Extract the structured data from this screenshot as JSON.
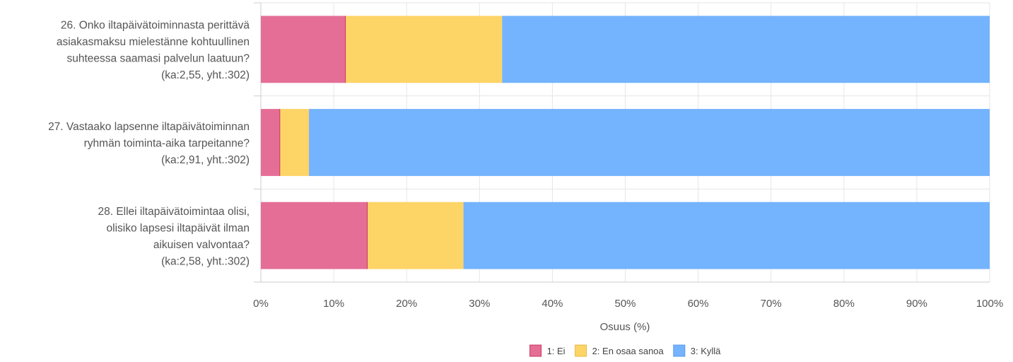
{
  "chart_data": {
    "type": "bar",
    "orientation": "horizontal",
    "stacked": true,
    "categories": [
      [
        "26. Onko iltapäivätoiminnasta perittävä",
        "asiakasmaksu mielestänne kohtuullinen",
        "suhteessa saamasi palvelun laatuun?",
        "(ka:2,55, yht.:302)"
      ],
      [
        "27. Vastaako lapsenne iltapäivätoiminnan",
        "ryhmän toiminta-aika tarpeitanne?",
        "(ka:2,91, yht.:302)"
      ],
      [
        "28. Ellei iltapäivätoimintaa olisi,",
        "olisiko lapsesi iltapäivät ilman",
        "aikuisen valvontaa?",
        "(ka:2,58, yht.:302)"
      ]
    ],
    "series": [
      {
        "name": "1: Ei",
        "color": "#e56e97",
        "values": [
          11.6,
          2.6,
          14.6
        ]
      },
      {
        "name": "2: En osaa sanoa",
        "color": "#fdd466",
        "values": [
          21.5,
          4.0,
          13.2
        ]
      },
      {
        "name": "3: Kyllä",
        "color": "#74b3fd",
        "values": [
          66.9,
          93.4,
          72.2
        ]
      }
    ],
    "xlabel": "Osuus (%)",
    "xlim": [
      0,
      100
    ],
    "xticks": [
      "0%",
      "10%",
      "20%",
      "30%",
      "40%",
      "50%",
      "60%",
      "70%",
      "80%",
      "90%",
      "100%"
    ],
    "grid": true,
    "legend": "bottom-center"
  }
}
